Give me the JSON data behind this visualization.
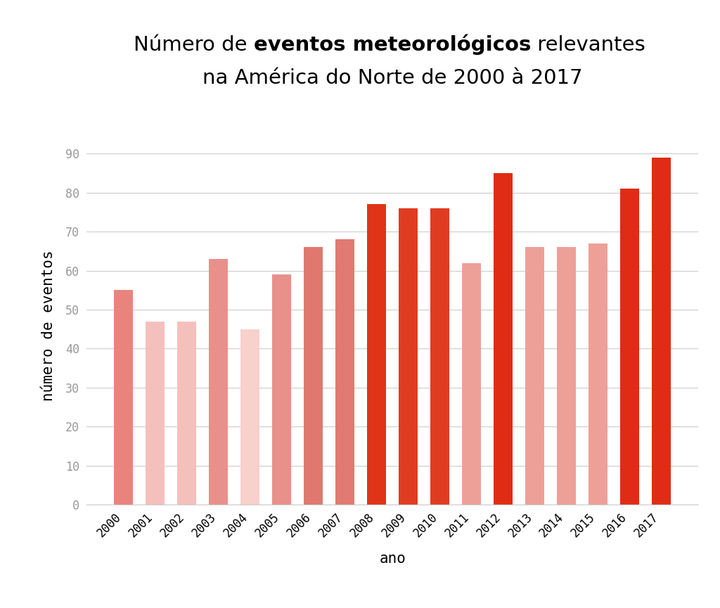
{
  "years": [
    "2000",
    "2001",
    "2002",
    "2003",
    "2004",
    "2005",
    "2006",
    "2007",
    "2008",
    "2009",
    "2010",
    "2011",
    "2012",
    "2013",
    "2014",
    "2015",
    "2016",
    "2017"
  ],
  "values": [
    55,
    47,
    47,
    63,
    45,
    59,
    66,
    68,
    77,
    76,
    76,
    62,
    85,
    66,
    66,
    67,
    81,
    89
  ],
  "bar_colors": [
    "#e8847c",
    "#f5c0bc",
    "#f5c0bc",
    "#e8908a",
    "#f8d0cc",
    "#e8908a",
    "#e07870",
    "#e07a72",
    "#e03418",
    "#e03c22",
    "#e03c22",
    "#eda098",
    "#e02c14",
    "#eda098",
    "#eda098",
    "#eda098",
    "#e02c14",
    "#e02c14"
  ],
  "title_pre": "Número de ",
  "title_bold": "eventos meteorológicos",
  "title_post": " relevantes",
  "title_line2": "na América do Norte de 2000 à 2017",
  "ylabel": "número de eventos",
  "xlabel": "ano",
  "ylim": [
    0,
    92
  ],
  "yticks": [
    0,
    10,
    20,
    30,
    40,
    50,
    60,
    70,
    80,
    90
  ],
  "background_color": "#ffffff",
  "grid_color": "#cccccc",
  "title_fontsize": 21,
  "label_fontsize": 15,
  "tick_fontsize": 12
}
